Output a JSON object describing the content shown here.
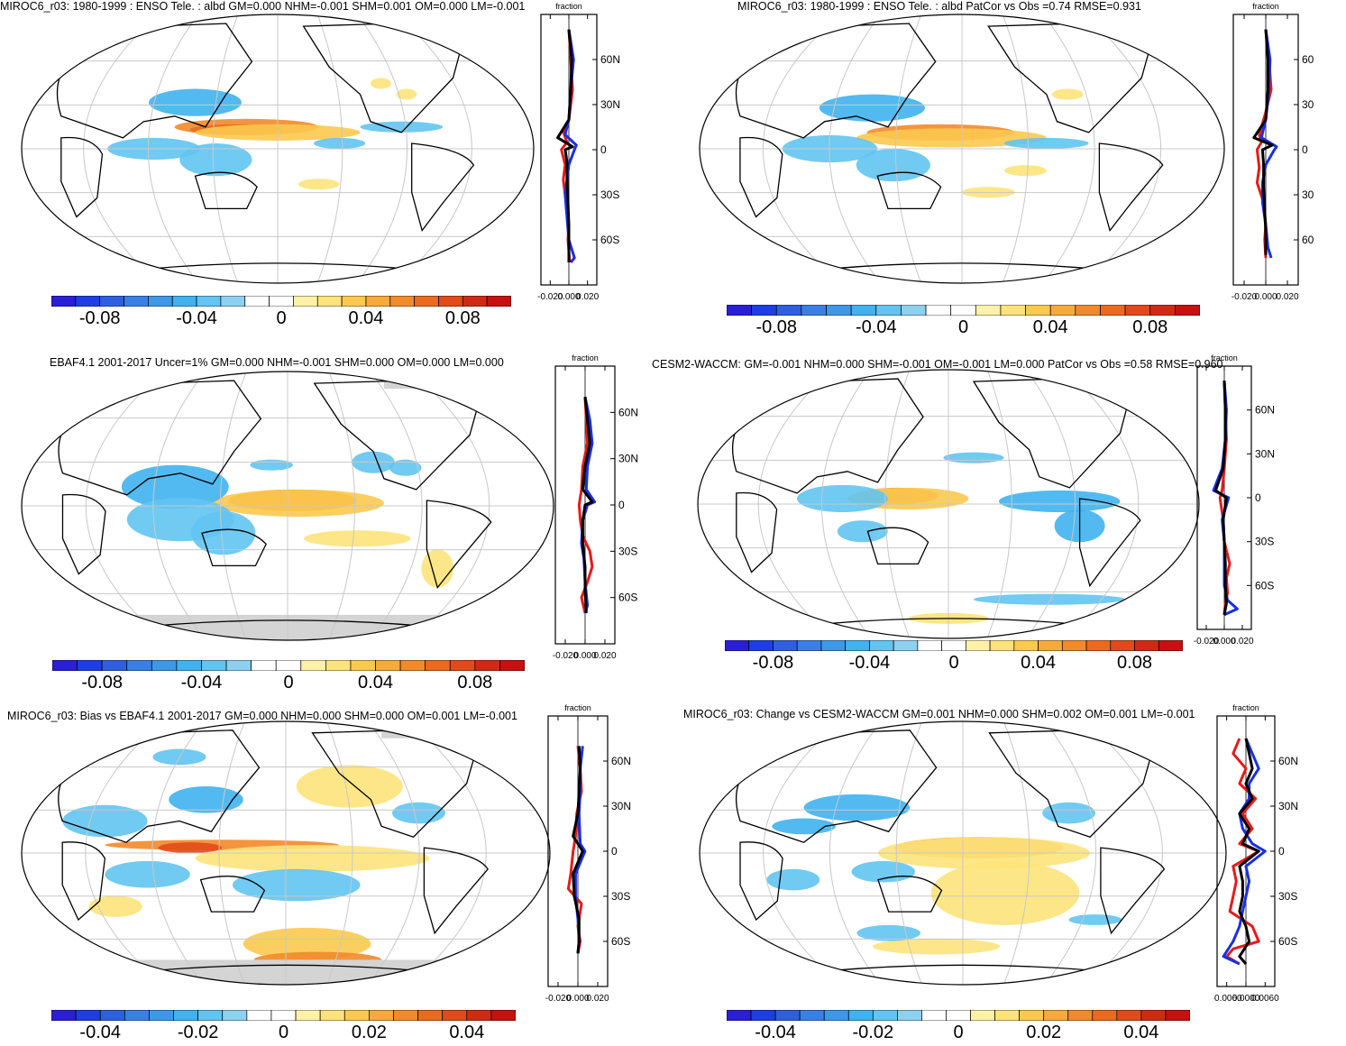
{
  "panels": [
    {
      "title": "MIROC6_r03: 1980-1999 : ENSO Tele. : albd GM=0.000 NHM=-0.001 SHM=0.001 OM=0.000 LM=-0.001",
      "colorbar_ticks": [
        "-0.08",
        "-0.04",
        "0",
        "0.04",
        "0.08"
      ],
      "zonal": {
        "top_label": "fraction",
        "lat_labels": [
          "60N",
          "30N",
          "0",
          "30S",
          "60S"
        ],
        "x_labels": [
          "-0.020",
          "0.000",
          "0.020"
        ]
      }
    },
    {
      "title": "MIROC6_r03: 1980-1999 : ENSO Tele. : albd PatCor vs Obs =0.74 RMSE=0.931",
      "colorbar_ticks": [
        "-0.08",
        "-0.04",
        "0",
        "0.04",
        "0.08"
      ],
      "zonal": {
        "top_label": "fraction",
        "lat_labels": [
          "60",
          "30",
          "0",
          "30",
          "60"
        ],
        "x_labels": [
          "-0.020",
          "0.000",
          "0.020"
        ]
      }
    },
    {
      "title": "EBAF4.1 2001-2017 Uncer=1% GM=0.000 NHM=-0.001 SHM=0.000 OM=0.000 LM=0.000",
      "colorbar_ticks": [
        "-0.08",
        "-0.04",
        "0",
        "0.04",
        "0.08"
      ],
      "zonal": {
        "top_label": "fraction",
        "lat_labels": [
          "60N",
          "30N",
          "0",
          "30S",
          "60S"
        ],
        "x_labels": [
          "-0.020",
          "0.000",
          "0.020"
        ]
      }
    },
    {
      "title": "CESM2-WACCM: GM=-0.001 NHM=0.000 SHM=-0.001 OM=-0.001 LM=0.000 PatCor vs Obs =0.58 RMSE=0.960",
      "colorbar_ticks": [
        "-0.08",
        "-0.04",
        "0",
        "0.04",
        "0.08"
      ],
      "zonal": {
        "top_label": "fraction",
        "lat_labels": [
          "60N",
          "30N",
          "0",
          "30S",
          "60S"
        ],
        "x_labels": [
          "-0.020",
          "0.000",
          "0.020"
        ]
      }
    },
    {
      "title": "MIROC6_r03: Bias vs EBAF4.1 2001-2017 GM=0.000 NHM=0.000 SHM=0.000 OM=0.001 LM=-0.001",
      "colorbar_ticks": [
        "-0.04",
        "-0.02",
        "0",
        "0.02",
        "0.04"
      ],
      "zonal": {
        "top_label": "fraction",
        "lat_labels": [
          "60N",
          "30N",
          "0",
          "30S",
          "60S"
        ],
        "x_labels": [
          "-0.020",
          "0.000",
          "0.020"
        ]
      }
    },
    {
      "title": "MIROC6_r03: Change vs CESM2-WACCM GM=0.001 NHM=0.000 SHM=0.002 OM=0.001 LM=-0.001",
      "colorbar_ticks": [
        "-0.04",
        "-0.02",
        "0",
        "0.02",
        "0.04"
      ],
      "zonal": {
        "top_label": "fraction",
        "lat_labels": [
          "60N",
          "30N",
          "0",
          "30S",
          "60S"
        ],
        "x_labels": [
          "-0.0060",
          "0.0000",
          "0.0060"
        ]
      }
    }
  ],
  "colors": {
    "palette": [
      "#2a1fd6",
      "#1d3ee6",
      "#2f5fe0",
      "#3a7fe6",
      "#3e98e8",
      "#3fb2ef",
      "#62c4f1",
      "#8dd0ef",
      "#ffffff",
      "#ffffff",
      "#fff2a8",
      "#fde37a",
      "#fbc94e",
      "#f7a93a",
      "#f28a2a",
      "#ec6a1e",
      "#e24a19",
      "#d12a14",
      "#c81010"
    ],
    "zonal_obs": "#1a2ee6",
    "zonal_model": "#e61a1a",
    "zonal_other": "#000000"
  }
}
